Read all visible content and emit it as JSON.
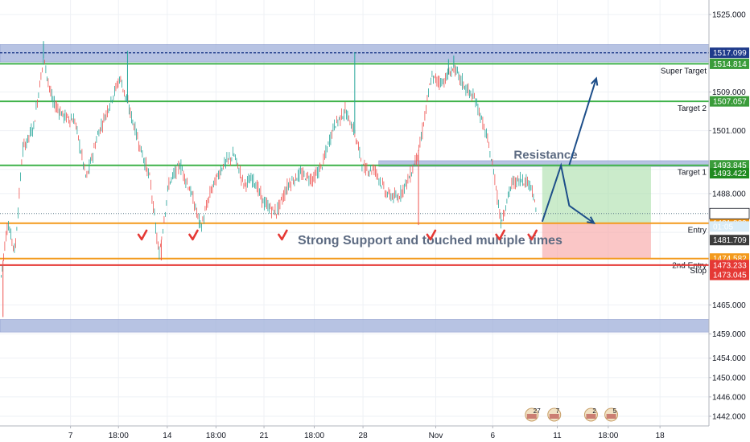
{
  "chart_data": {
    "type": "candlestick",
    "title": "",
    "ylim": [
      1440,
      1528
    ],
    "y_ticks": [
      1525.0,
      1517.0,
      1509.0,
      1501.0,
      1493.0,
      1488.0,
      1480.0,
      1465.0,
      1459.0,
      1454.0,
      1450.0,
      1446.0,
      1442.0
    ],
    "y_tick_labels": [
      "1525.000",
      "",
      "1509.000",
      "1501.000",
      "",
      "1488.000",
      "",
      "1465.000",
      "1459.000",
      "1454.000",
      "1450.000",
      "1446.000",
      "1442.000"
    ],
    "x_tick_labels": [
      "7",
      "18:00",
      "14",
      "18:00",
      "21",
      "18:00",
      "28",
      "Nov",
      "6",
      "11",
      "18:00",
      "18"
    ],
    "x_tick_positions": [
      0.094,
      0.158,
      0.223,
      0.288,
      0.352,
      0.419,
      0.484,
      0.581,
      0.657,
      0.743,
      0.811,
      0.88
    ],
    "grid": true,
    "price_path": [
      [
        0.0,
        1469
      ],
      [
        0.01,
        1482
      ],
      [
        0.02,
        1476
      ],
      [
        0.03,
        1497
      ],
      [
        0.045,
        1502
      ],
      [
        0.058,
        1516
      ],
      [
        0.07,
        1507
      ],
      [
        0.085,
        1504
      ],
      [
        0.1,
        1503
      ],
      [
        0.115,
        1491
      ],
      [
        0.13,
        1500
      ],
      [
        0.145,
        1506
      ],
      [
        0.16,
        1512
      ],
      [
        0.175,
        1504
      ],
      [
        0.188,
        1497
      ],
      [
        0.2,
        1491
      ],
      [
        0.212,
        1475
      ],
      [
        0.225,
        1490
      ],
      [
        0.24,
        1494
      ],
      [
        0.255,
        1488
      ],
      [
        0.268,
        1481
      ],
      [
        0.282,
        1489
      ],
      [
        0.298,
        1494
      ],
      [
        0.312,
        1496
      ],
      [
        0.325,
        1490
      ],
      [
        0.338,
        1491
      ],
      [
        0.352,
        1486
      ],
      [
        0.368,
        1484
      ],
      [
        0.385,
        1490
      ],
      [
        0.4,
        1492
      ],
      [
        0.418,
        1491
      ],
      [
        0.43,
        1494
      ],
      [
        0.445,
        1502
      ],
      [
        0.46,
        1505
      ],
      [
        0.472,
        1501
      ],
      [
        0.485,
        1493
      ],
      [
        0.5,
        1493
      ],
      [
        0.515,
        1488
      ],
      [
        0.53,
        1487
      ],
      [
        0.548,
        1492
      ],
      [
        0.56,
        1498
      ],
      [
        0.575,
        1512
      ],
      [
        0.59,
        1511
      ],
      [
        0.605,
        1514
      ],
      [
        0.62,
        1510
      ],
      [
        0.635,
        1507
      ],
      [
        0.65,
        1499
      ],
      [
        0.66,
        1491
      ],
      [
        0.668,
        1482
      ],
      [
        0.682,
        1490
      ],
      [
        0.695,
        1491
      ],
      [
        0.708,
        1490
      ],
      [
        0.715,
        1484
      ]
    ],
    "zones": [
      {
        "low": 1515.2,
        "high": 1518.8,
        "color": "#9fafd9"
      },
      {
        "low": 1459.4,
        "high": 1462.0,
        "color": "#9fafd9"
      },
      {
        "low": 1493.6,
        "high": 1494.8,
        "color": "#9fafd9"
      }
    ],
    "levels": [
      {
        "price": 1517.099,
        "label": "",
        "tag": "1517.099",
        "tag_color": "#1e3a8a",
        "line_color": "#1e3a8a",
        "style": "dashed"
      },
      {
        "price": 1514.814,
        "label": "Super Target",
        "tag": "1514.814",
        "tag_color": "#3a9c3a",
        "line_color": "#3fb24a",
        "style": "solid"
      },
      {
        "price": 1507.057,
        "label": "Target 2",
        "tag": "1507.057",
        "tag_color": "#3a9c3a",
        "line_color": "#3fb24a",
        "style": "solid"
      },
      {
        "price": 1493.845,
        "label": "Target 1",
        "tag": "1493.845",
        "tag_color": "#3a9c3a",
        "line_color": "#3fb24a",
        "style": "solid"
      },
      {
        "price": 1481.889,
        "label": "Entry",
        "tag": "1481.889",
        "tag_color": "#f39a1c",
        "line_color": "#f39a1c",
        "style": "solid"
      },
      {
        "price": 1474.582,
        "label": "2nd Entry",
        "tag": "1474.582",
        "tag_color": "#f39a1c",
        "line_color": "#f39a1c",
        "style": "solid"
      },
      {
        "price": 1473.233,
        "label": "Stop",
        "tag": "1473.233",
        "tag_color": "#e53935",
        "line_color": "#e53935",
        "style": "solid"
      }
    ],
    "extra_tags": [
      {
        "price": 1492.2,
        "tag": "1493.422",
        "color": "#1f8a1f"
      },
      {
        "price": 1483.874,
        "tag": "1483.874",
        "color": "#ffffff",
        "text_color": "#131722",
        "border": "#131722"
      },
      {
        "price": 1481.2,
        "tag": "01:05",
        "color": "#d9ecf7",
        "text_color": "#131722"
      },
      {
        "price": 1478.4,
        "tag": "1481.709",
        "color": "#3b3b3b"
      },
      {
        "price": 1471.2,
        "tag": "1473.045",
        "color": "#e53935"
      }
    ],
    "annotations": [
      {
        "text": "Resistance",
        "x": 0.685,
        "price": 1495.2,
        "size": 15
      },
      {
        "text": "Strong Support and touched multiple times",
        "x": 0.397,
        "price": 1477.5,
        "size": 16
      }
    ],
    "check_marks": [
      0.19,
      0.258,
      0.377,
      0.575,
      0.667,
      0.71
    ],
    "arrows": [
      [
        [
          0.723,
          1482.2
        ],
        [
          0.748,
          1493.8
        ],
        [
          0.759,
          1485.5
        ],
        [
          0.792,
          1481.9
        ]
      ],
      [
        [
          0.759,
          1493.9
        ],
        [
          0.795,
          1511.8
        ]
      ]
    ],
    "long_position": {
      "x0": 0.723,
      "x1": 0.868,
      "entry": 1481.889,
      "target": 1493.845,
      "stop": 1474.582
    },
    "events": [
      {
        "x": 0.709,
        "label": "27"
      },
      {
        "x": 0.739,
        "label": "7"
      },
      {
        "x": 0.788,
        "label": "2"
      },
      {
        "x": 0.815,
        "label": "5"
      }
    ],
    "colors": {
      "up": "#26a69a",
      "down": "#ef5350",
      "grid": "#eef1f5"
    }
  }
}
